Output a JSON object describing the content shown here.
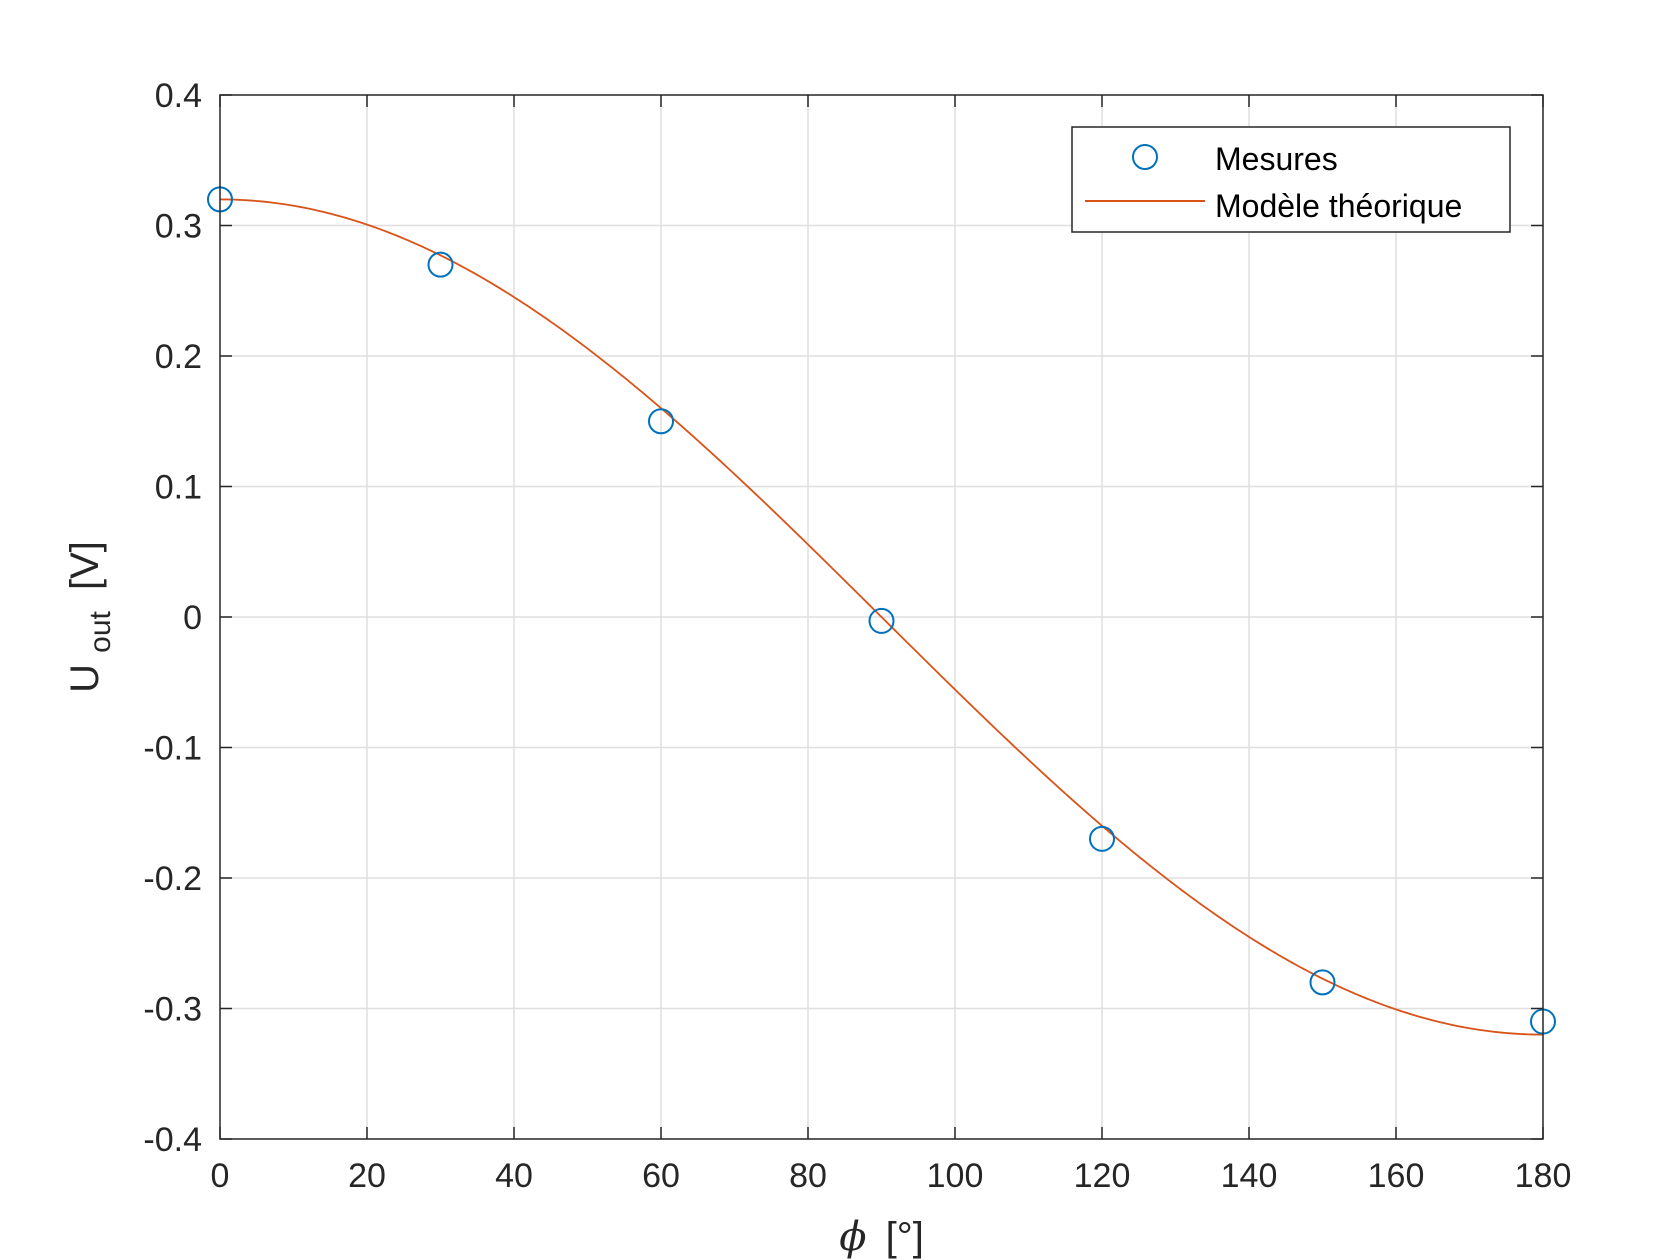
{
  "chart_data": {
    "type": "scatter",
    "xlabel": {
      "symbol": "ϕ",
      "unit": "[°]"
    },
    "ylabel": {
      "main": "U",
      "sub": "out",
      "unit": "[V]"
    },
    "xlim": [
      0,
      180
    ],
    "ylim": [
      -0.4,
      0.4
    ],
    "xticks": [
      0,
      20,
      40,
      60,
      80,
      100,
      120,
      140,
      160,
      180
    ],
    "xtick_labels": [
      "0",
      "20",
      "40",
      "60",
      "80",
      "100",
      "120",
      "140",
      "160",
      "180"
    ],
    "yticks": [
      -0.4,
      -0.3,
      -0.2,
      -0.1,
      0,
      0.1,
      0.2,
      0.3,
      0.4
    ],
    "ytick_labels": [
      "-0.4",
      "-0.3",
      "-0.2",
      "-0.1",
      "0",
      "0.1",
      "0.2",
      "0.3",
      "0.4"
    ],
    "grid": true,
    "legend_position": "top-right",
    "series": [
      {
        "name": "Mesures",
        "kind": "markers",
        "marker": "circle",
        "color": "#0072BD",
        "x": [
          0,
          30,
          60,
          90,
          120,
          150,
          180
        ],
        "y": [
          0.32,
          0.27,
          0.15,
          -0.003,
          -0.17,
          -0.28,
          -0.31
        ]
      },
      {
        "name": "Modèle théorique",
        "kind": "line",
        "color": "#D95319",
        "function": "0.32*cos(x)",
        "amplitude": 0.32
      }
    ]
  }
}
